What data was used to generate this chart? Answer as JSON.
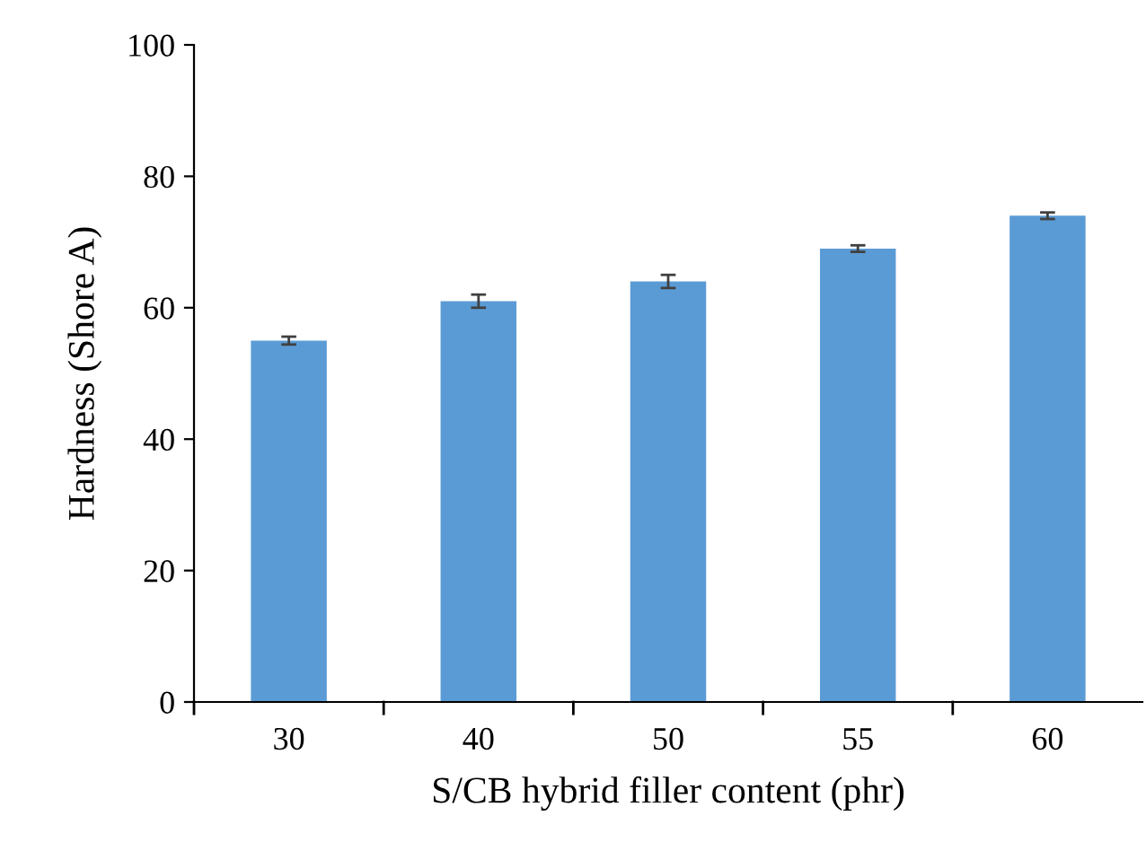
{
  "chart_data": {
    "type": "bar",
    "xlabel": "S/CB hybrid filler content (phr)",
    "ylabel": "Hardness (Shore A)",
    "categories": [
      "30",
      "40",
      "50",
      "55",
      "60"
    ],
    "values": [
      55,
      61,
      64,
      69,
      74
    ],
    "errors": [
      0.6,
      1,
      1,
      0.5,
      0.5
    ],
    "color": "#5b9bd5",
    "ylim": [
      0,
      100
    ],
    "yticks": [
      0,
      20,
      40,
      60,
      80,
      100
    ],
    "grid": false,
    "legend": false
  }
}
